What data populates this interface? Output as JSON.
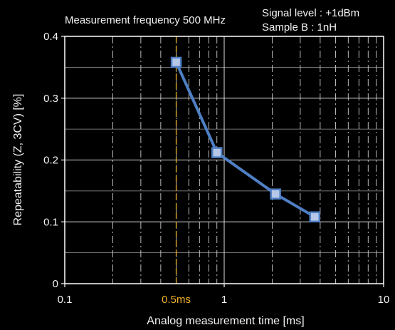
{
  "chart_data": {
    "type": "line",
    "title": "Measurement frequency  500 MHz",
    "annotations": [
      "Signal level : +1dBm",
      "Sample B : 1nH"
    ],
    "xlabel": "Analog measurement time [ms]",
    "ylabel": "Repeatability (Z, 3CV) [%]",
    "x_scale": "log",
    "xlim": [
      0.1,
      10
    ],
    "ylim": [
      0,
      0.4
    ],
    "x_ticks": [
      0.1,
      1,
      10
    ],
    "x_tick_labels": [
      "0.1",
      "1",
      "10"
    ],
    "y_ticks": [
      0,
      0.1,
      0.2,
      0.3,
      0.4
    ],
    "y_tick_labels": [
      "0",
      "0.1",
      "0.2",
      "0.3",
      "0.4"
    ],
    "marker_line": {
      "x": 0.5,
      "label": "0.5ms"
    },
    "grid": true,
    "series": [
      {
        "x": [
          0.5,
          0.9,
          2.1,
          3.7
        ],
        "y": [
          0.358,
          0.212,
          0.145,
          0.108
        ]
      }
    ],
    "colors": {
      "line": "#4f7fc4",
      "marker_fill": "#b7c7e8",
      "marker_line": "#eeb12a",
      "text": "#f2f2f2",
      "background": "#000000"
    }
  }
}
